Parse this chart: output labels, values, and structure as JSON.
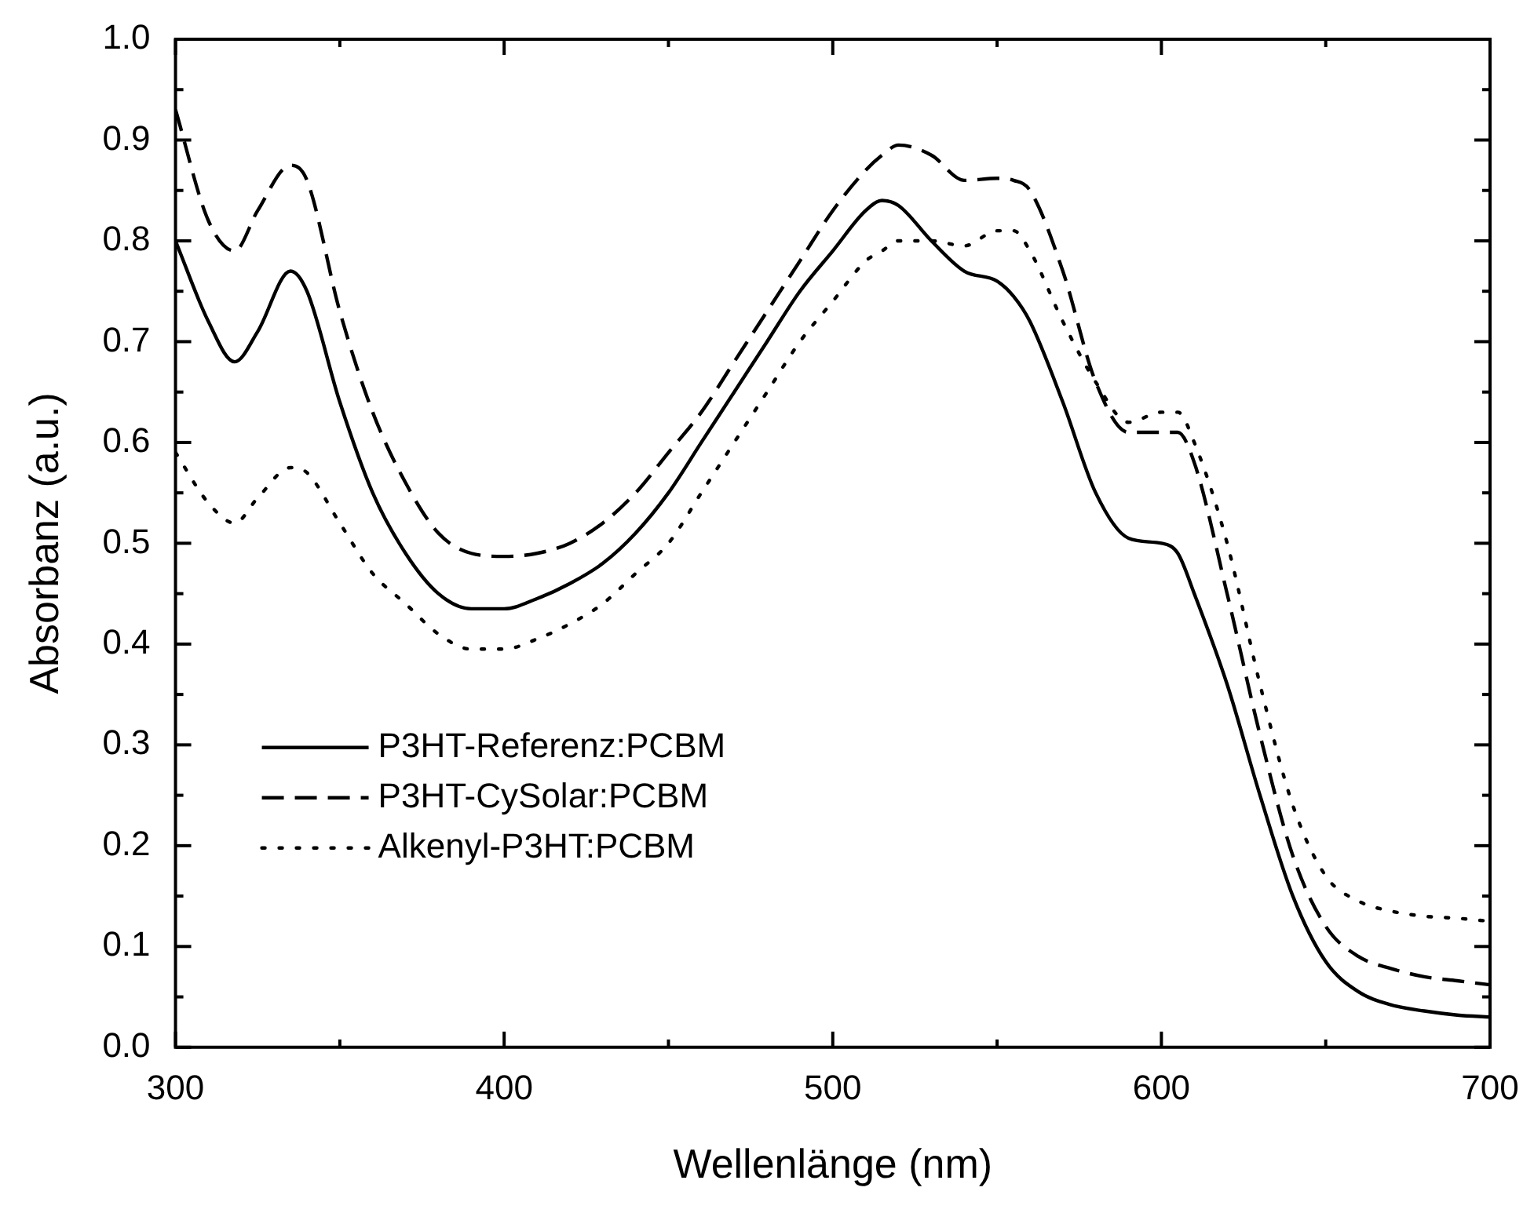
{
  "chart_data": {
    "type": "line",
    "xlabel": "Wellenlänge (nm)",
    "ylabel": "Absorbanz (a.u.)",
    "x": [
      300,
      310,
      318,
      325,
      335,
      340,
      350,
      360,
      370,
      380,
      390,
      400,
      410,
      420,
      430,
      440,
      450,
      460,
      470,
      480,
      490,
      500,
      510,
      515,
      520,
      530,
      540,
      550,
      555,
      560,
      570,
      580,
      590,
      600,
      605,
      610,
      620,
      630,
      640,
      650,
      660,
      670,
      680,
      690,
      700
    ],
    "series": [
      {
        "name": "P3HT-Referenz:PCBM",
        "color": "#000000",
        "line_style": "solid",
        "values": [
          0.8,
          0.72,
          0.68,
          0.71,
          0.77,
          0.75,
          0.64,
          0.55,
          0.49,
          0.45,
          0.435,
          0.435,
          0.445,
          0.46,
          0.48,
          0.51,
          0.55,
          0.6,
          0.65,
          0.7,
          0.75,
          0.79,
          0.83,
          0.84,
          0.835,
          0.8,
          0.77,
          0.76,
          0.745,
          0.72,
          0.64,
          0.55,
          0.505,
          0.5,
          0.49,
          0.45,
          0.36,
          0.25,
          0.15,
          0.085,
          0.055,
          0.042,
          0.036,
          0.032,
          0.03
        ]
      },
      {
        "name": "P3HT-CySolar:PCBM",
        "color": "#000000",
        "line_style": "dashed",
        "values": [
          0.93,
          0.82,
          0.79,
          0.83,
          0.875,
          0.86,
          0.73,
          0.63,
          0.56,
          0.51,
          0.49,
          0.487,
          0.49,
          0.5,
          0.52,
          0.55,
          0.59,
          0.63,
          0.68,
          0.73,
          0.78,
          0.83,
          0.87,
          0.885,
          0.895,
          0.885,
          0.86,
          0.862,
          0.86,
          0.85,
          0.77,
          0.66,
          0.61,
          0.61,
          0.61,
          0.58,
          0.45,
          0.31,
          0.19,
          0.12,
          0.09,
          0.078,
          0.07,
          0.066,
          0.062
        ]
      },
      {
        "name": "Alkenyl-P3HT:PCBM",
        "color": "#000000",
        "line_style": "dotted",
        "values": [
          0.59,
          0.54,
          0.52,
          0.545,
          0.575,
          0.57,
          0.52,
          0.47,
          0.44,
          0.41,
          0.395,
          0.395,
          0.405,
          0.42,
          0.44,
          0.47,
          0.5,
          0.55,
          0.6,
          0.65,
          0.7,
          0.74,
          0.78,
          0.79,
          0.8,
          0.8,
          0.795,
          0.81,
          0.81,
          0.79,
          0.72,
          0.66,
          0.62,
          0.63,
          0.63,
          0.6,
          0.5,
          0.36,
          0.24,
          0.17,
          0.145,
          0.135,
          0.13,
          0.128,
          0.125
        ]
      }
    ],
    "xlim": [
      300,
      700
    ],
    "xticks": [
      300,
      400,
      500,
      600,
      700
    ],
    "ylim": [
      0,
      1
    ],
    "yticks": [
      {
        "value": 0,
        "label": "0.0"
      },
      {
        "value": 0.1,
        "label": "0.1"
      },
      {
        "value": 0.2,
        "label": "0.2"
      },
      {
        "value": 0.3,
        "label": "0.3"
      },
      {
        "value": 0.4,
        "label": "0.4"
      },
      {
        "value": 0.5,
        "label": "0.5"
      },
      {
        "value": 0.6,
        "label": "0.6"
      },
      {
        "value": 0.7,
        "label": "0.7"
      },
      {
        "value": 0.8,
        "label": "0.8"
      },
      {
        "value": 0.9,
        "label": "0.9"
      },
      {
        "value": 1,
        "label": "1.0"
      }
    ],
    "grid": false,
    "legend": "bottom left",
    "marker": "none"
  }
}
